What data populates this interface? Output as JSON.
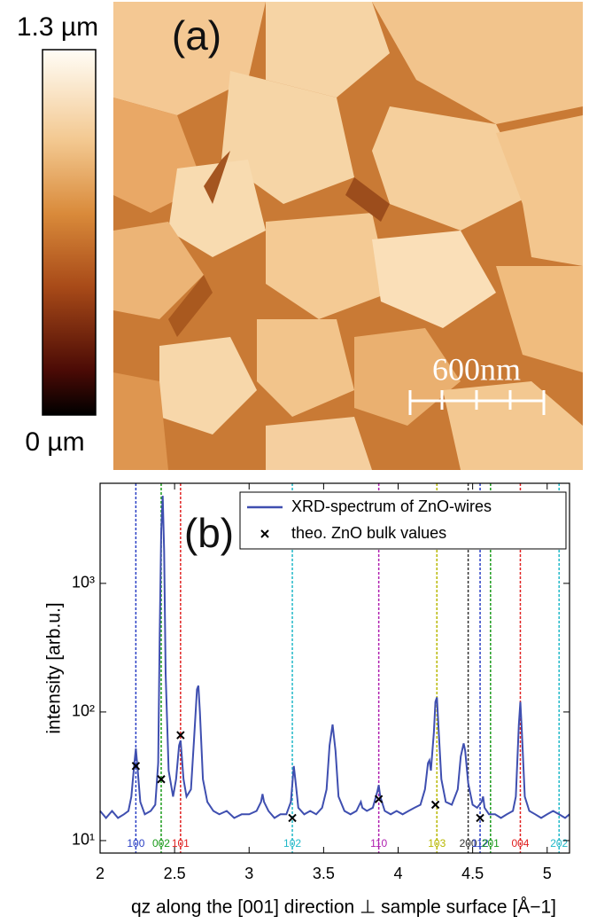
{
  "afm_panel": {
    "label": "(a)",
    "colorbar_max": "1.3 µm",
    "colorbar_min": "0 µm",
    "scale_bar": "600nm"
  },
  "chart_data": {
    "type": "line",
    "panel_label": "(b)",
    "ylabel": "intensity [arb.u.]",
    "xlabel": "qz along the [001] direction ⊥ sample surface [Å−1]",
    "log_y": true,
    "xlim": [
      2,
      5.15
    ],
    "xticks": [
      2,
      2.5,
      3,
      3.5,
      4,
      4.5,
      5
    ],
    "ylim": [
      8,
      6000
    ],
    "yticks": [
      {
        "value": 10,
        "label": "10¹"
      },
      {
        "value": 100,
        "label": "10²"
      },
      {
        "value": 1000,
        "label": "10³"
      }
    ],
    "legend": "upper right",
    "series": [
      {
        "name": "XRD-spectrum of ZnO-wires",
        "color": "#3f4fb0",
        "x": [
          2.0,
          2.04,
          2.08,
          2.12,
          2.16,
          2.19,
          2.21,
          2.23,
          2.24,
          2.25,
          2.27,
          2.3,
          2.34,
          2.37,
          2.39,
          2.4,
          2.41,
          2.42,
          2.43,
          2.44,
          2.46,
          2.49,
          2.51,
          2.53,
          2.54,
          2.56,
          2.58,
          2.61,
          2.63,
          2.65,
          2.66,
          2.67,
          2.69,
          2.72,
          2.76,
          2.8,
          2.85,
          2.9,
          2.95,
          3.0,
          3.05,
          3.08,
          3.09,
          3.1,
          3.13,
          3.17,
          3.21,
          3.25,
          3.28,
          3.3,
          3.31,
          3.33,
          3.37,
          3.41,
          3.45,
          3.49,
          3.52,
          3.54,
          3.56,
          3.58,
          3.6,
          3.64,
          3.68,
          3.72,
          3.74,
          3.75,
          3.76,
          3.79,
          3.83,
          3.86,
          3.87,
          3.88,
          3.91,
          3.95,
          3.99,
          4.03,
          4.07,
          4.11,
          4.15,
          4.18,
          4.2,
          4.21,
          4.22,
          4.24,
          4.25,
          4.26,
          4.27,
          4.29,
          4.32,
          4.36,
          4.4,
          4.42,
          4.44,
          4.45,
          4.47,
          4.5,
          4.53,
          4.56,
          4.57,
          4.58,
          4.61,
          4.65,
          4.69,
          4.73,
          4.77,
          4.79,
          4.81,
          4.82,
          4.83,
          4.85,
          4.88,
          4.92,
          4.96,
          5.0,
          5.04,
          5.08,
          5.12,
          5.15
        ],
        "values": [
          17,
          15,
          17,
          15,
          16,
          17,
          22,
          40,
          52,
          38,
          20,
          16,
          17,
          19,
          40,
          400,
          2500,
          4800,
          1800,
          200,
          35,
          22,
          30,
          55,
          60,
          30,
          22,
          25,
          60,
          150,
          160,
          100,
          30,
          20,
          17,
          16,
          17,
          15,
          16,
          16,
          17,
          20,
          23,
          20,
          17,
          15,
          16,
          16,
          20,
          38,
          30,
          18,
          16,
          17,
          16,
          18,
          25,
          55,
          80,
          50,
          22,
          17,
          16,
          17,
          19,
          20,
          18,
          17,
          18,
          24,
          27,
          22,
          17,
          16,
          17,
          16,
          17,
          18,
          19,
          25,
          40,
          42,
          35,
          70,
          120,
          130,
          80,
          30,
          20,
          19,
          25,
          45,
          57,
          50,
          28,
          19,
          18,
          20,
          22,
          18,
          16,
          16,
          15,
          16,
          17,
          22,
          80,
          120,
          70,
          22,
          17,
          16,
          15,
          16,
          17,
          16,
          15,
          16
        ]
      },
      {
        "name": "theo. ZnO bulk values",
        "color": "#000000",
        "marker": "x",
        "x": [
          2.24,
          2.41,
          2.54,
          3.29,
          3.87,
          4.25,
          4.55
        ],
        "values": [
          38,
          30,
          66,
          15,
          21,
          19,
          15
        ]
      }
    ],
    "reference_lines": [
      {
        "label": "100",
        "x": 2.24,
        "color": "#2a3fc4"
      },
      {
        "label": "002",
        "x": 2.41,
        "color": "#1a9a1a"
      },
      {
        "label": "101",
        "x": 2.54,
        "color": "#e02020"
      },
      {
        "label": "102",
        "x": 3.29,
        "color": "#20b8c8"
      },
      {
        "label": "110",
        "x": 3.87,
        "color": "#b020b0"
      },
      {
        "label": "103",
        "x": 4.26,
        "color": "#b8b800"
      },
      {
        "label": "200",
        "x": 4.47,
        "color": "#333333"
      },
      {
        "label": "112",
        "x": 4.55,
        "color": "#2a3fc4"
      },
      {
        "label": "201",
        "x": 4.62,
        "color": "#1a9a1a"
      },
      {
        "label": "004",
        "x": 4.82,
        "color": "#e02020"
      },
      {
        "label": "202",
        "x": 5.08,
        "color": "#20b8c8"
      }
    ]
  }
}
